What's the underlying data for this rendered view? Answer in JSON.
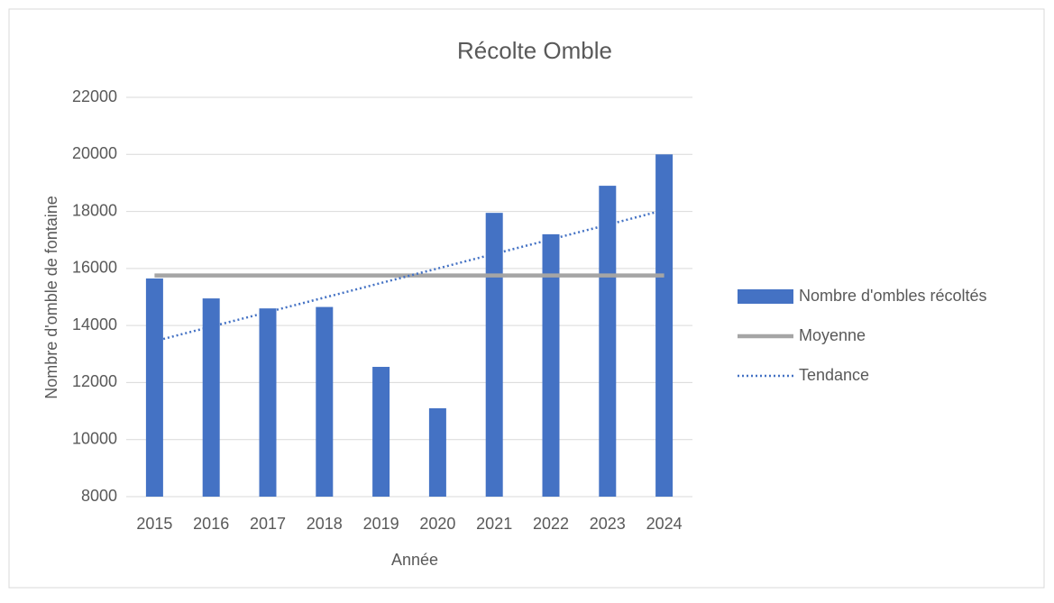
{
  "chart_data": {
    "type": "bar",
    "title": "Récolte Omble",
    "x_label": "Année",
    "y_label": "Nombre d'omble de fontaine",
    "categories": [
      "2015",
      "2016",
      "2017",
      "2018",
      "2019",
      "2020",
      "2021",
      "2022",
      "2023",
      "2024"
    ],
    "series": [
      {
        "name": "Nombre d'ombles récoltés",
        "type": "bar",
        "color": "#4472c4",
        "values": [
          15650,
          14950,
          14600,
          14650,
          12550,
          11100,
          17950,
          17200,
          18900,
          20000
        ]
      },
      {
        "name": "Moyenne",
        "type": "line",
        "color": "#a5a5a5",
        "values": [
          15755,
          15755,
          15755,
          15755,
          15755,
          15755,
          15755,
          15755,
          15755,
          15755
        ]
      },
      {
        "name": "Tendance",
        "type": "dotted-line",
        "color": "#4472c4",
        "values": [
          13450,
          13960,
          14470,
          14980,
          15490,
          16000,
          16510,
          17020,
          17530,
          18050
        ]
      }
    ],
    "ylim": [
      8000,
      22000
    ],
    "yticks": [
      8000,
      10000,
      12000,
      14000,
      16000,
      18000,
      20000,
      22000
    ],
    "grid": true,
    "legend": "right"
  }
}
